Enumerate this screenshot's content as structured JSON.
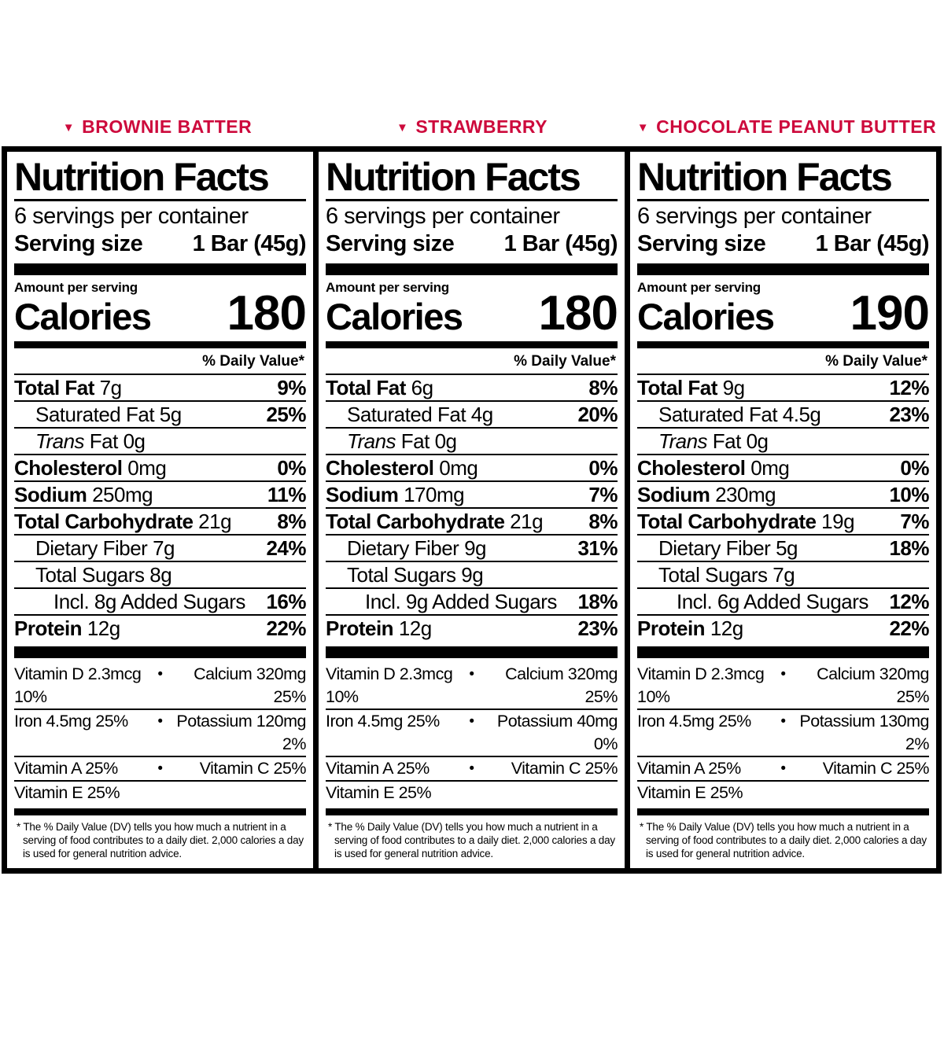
{
  "page": {
    "background": "#ffffff",
    "accent_red": "#CD0A3C",
    "label_border_color": "#000000"
  },
  "icons": {
    "triangle-down-icon": "▼",
    "bullet-icon": "•"
  },
  "labels": {
    "nutrition_facts": "Nutrition Facts",
    "servings_per_container": "6 servings per container",
    "serving_size_label": "Serving size",
    "serving_size_value": "1 Bar (45g)",
    "amount_per_serving": "Amount per serving",
    "calories_label": "Calories",
    "daily_value_header": "% Daily Value*"
  },
  "footnote": "* The % Daily Value (DV) tells you how much a nutrient in a serving of food contributes to a daily diet. 2,000 calories a day is used for general nutrition advice.",
  "panels": [
    {
      "flavor": "BROWNIE BATTER",
      "calories": "180",
      "nutrients": [
        {
          "name": "Total Fat",
          "amount": "7g",
          "dv": "9%",
          "indent": 0,
          "bold": true
        },
        {
          "name": "Saturated Fat",
          "amount": "5g",
          "dv": "25%",
          "indent": 1
        },
        {
          "name": "Trans Fat",
          "amount": "0g",
          "dv": "",
          "indent": 1,
          "italic_first": true
        },
        {
          "name": "Cholesterol",
          "amount": "0mg",
          "dv": "0%",
          "indent": 0,
          "bold": true
        },
        {
          "name": "Sodium",
          "amount": "250mg",
          "dv": "11%",
          "indent": 0,
          "bold": true
        },
        {
          "name": "Total Carbohydrate",
          "amount": "21g",
          "dv": "8%",
          "indent": 0,
          "bold": true
        },
        {
          "name": "Dietary Fiber",
          "amount": "7g",
          "dv": "24%",
          "indent": 1
        },
        {
          "name": "Total Sugars",
          "amount": "8g",
          "dv": "",
          "indent": 1
        },
        {
          "name": "Incl. 8g Added Sugars",
          "amount": "",
          "dv": "16%",
          "indent": 2
        },
        {
          "name": "Protein",
          "amount": "12g",
          "dv": "22%",
          "indent": 0,
          "bold": true
        }
      ],
      "vitamins": [
        {
          "left": "Vitamin D 2.3mcg 10%",
          "right": "Calcium 320mg 25%",
          "bullet": true
        },
        {
          "left": "Iron 4.5mg 25%",
          "right": "Potassium 120mg 2%",
          "bullet": true
        },
        {
          "left": "Vitamin A 25%",
          "right": "Vitamin C 25%",
          "bullet": true
        },
        {
          "left": "Vitamin E 25%",
          "right": "",
          "bullet": false
        }
      ]
    },
    {
      "flavor": "STRAWBERRY",
      "calories": "180",
      "nutrients": [
        {
          "name": "Total Fat",
          "amount": "6g",
          "dv": "8%",
          "indent": 0,
          "bold": true
        },
        {
          "name": "Saturated Fat",
          "amount": "4g",
          "dv": "20%",
          "indent": 1
        },
        {
          "name": "Trans Fat",
          "amount": "0g",
          "dv": "",
          "indent": 1,
          "italic_first": true
        },
        {
          "name": "Cholesterol",
          "amount": "0mg",
          "dv": "0%",
          "indent": 0,
          "bold": true
        },
        {
          "name": "Sodium",
          "amount": "170mg",
          "dv": "7%",
          "indent": 0,
          "bold": true
        },
        {
          "name": "Total Carbohydrate",
          "amount": "21g",
          "dv": "8%",
          "indent": 0,
          "bold": true
        },
        {
          "name": "Dietary Fiber",
          "amount": "9g",
          "dv": "31%",
          "indent": 1
        },
        {
          "name": "Total Sugars",
          "amount": "9g",
          "dv": "",
          "indent": 1
        },
        {
          "name": "Incl. 9g Added Sugars",
          "amount": "",
          "dv": "18%",
          "indent": 2
        },
        {
          "name": "Protein",
          "amount": "12g",
          "dv": "23%",
          "indent": 0,
          "bold": true
        }
      ],
      "vitamins": [
        {
          "left": "Vitamin D 2.3mcg 10%",
          "right": "Calcium 320mg 25%",
          "bullet": true
        },
        {
          "left": "Iron 4.5mg 25%",
          "right": "Potassium 40mg 0%",
          "bullet": true
        },
        {
          "left": "Vitamin A 25%",
          "right": "Vitamin C 25%",
          "bullet": true
        },
        {
          "left": "Vitamin E 25%",
          "right": "",
          "bullet": false
        }
      ]
    },
    {
      "flavor": "CHOCOLATE PEANUT BUTTER",
      "calories": "190",
      "nutrients": [
        {
          "name": "Total Fat",
          "amount": "9g",
          "dv": "12%",
          "indent": 0,
          "bold": true
        },
        {
          "name": "Saturated Fat",
          "amount": "4.5g",
          "dv": "23%",
          "indent": 1
        },
        {
          "name": "Trans Fat",
          "amount": "0g",
          "dv": "",
          "indent": 1,
          "italic_first": true
        },
        {
          "name": "Cholesterol",
          "amount": "0mg",
          "dv": "0%",
          "indent": 0,
          "bold": true
        },
        {
          "name": "Sodium",
          "amount": "230mg",
          "dv": "10%",
          "indent": 0,
          "bold": true
        },
        {
          "name": "Total Carbohydrate",
          "amount": "19g",
          "dv": "7%",
          "indent": 0,
          "bold": true
        },
        {
          "name": "Dietary Fiber",
          "amount": "5g",
          "dv": "18%",
          "indent": 1
        },
        {
          "name": "Total Sugars",
          "amount": "7g",
          "dv": "",
          "indent": 1
        },
        {
          "name": "Incl. 6g Added Sugars",
          "amount": "",
          "dv": "12%",
          "indent": 2
        },
        {
          "name": "Protein",
          "amount": "12g",
          "dv": "22%",
          "indent": 0,
          "bold": true
        }
      ],
      "vitamins": [
        {
          "left": "Vitamin D 2.3mcg 10%",
          "right": "Calcium 320mg 25%",
          "bullet": true
        },
        {
          "left": "Iron 4.5mg 25%",
          "right": "Potassium 130mg 2%",
          "bullet": true
        },
        {
          "left": "Vitamin A 25%",
          "right": "Vitamin C 25%",
          "bullet": true
        },
        {
          "left": "Vitamin E 25%",
          "right": "",
          "bullet": false
        }
      ]
    }
  ]
}
